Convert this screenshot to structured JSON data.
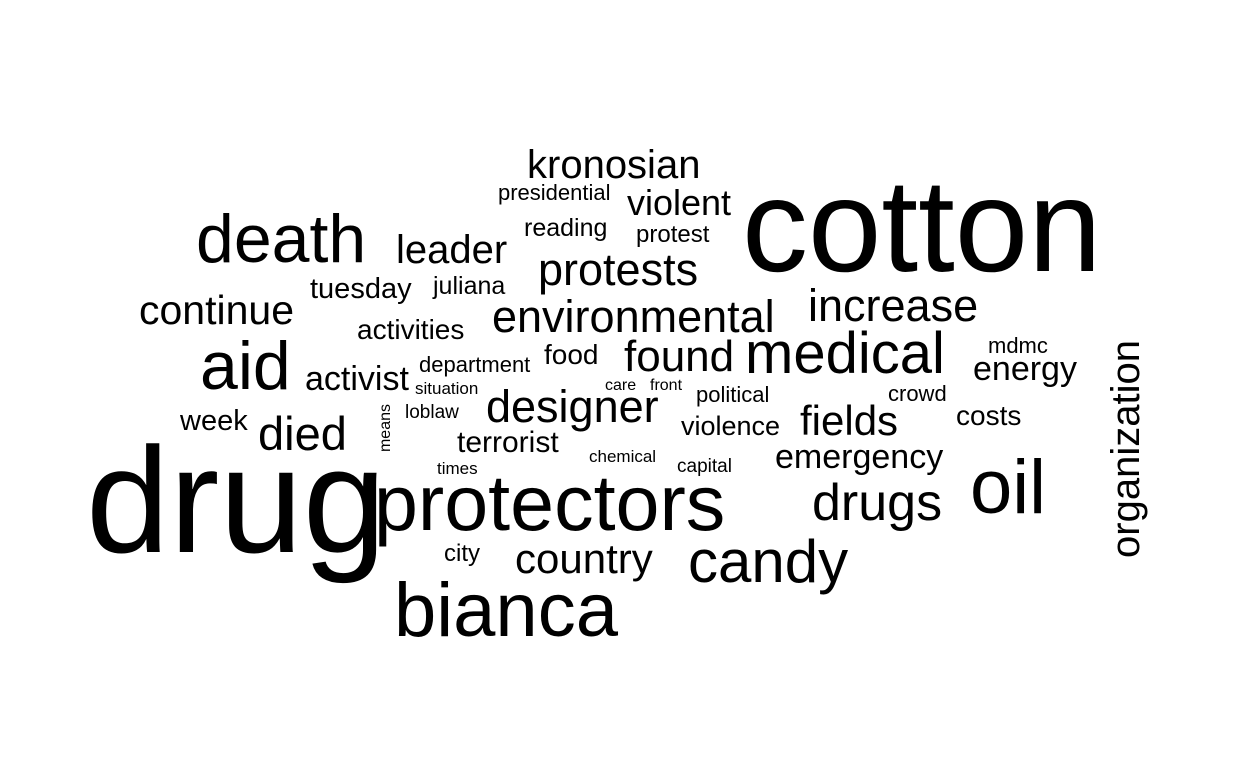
{
  "words": {
    "cotton": "cotton",
    "drug": "drug",
    "protectors": "protectors",
    "bianca": "bianca",
    "death": "death",
    "aid": "aid",
    "medical": "medical",
    "oil": "oil",
    "candy": "candy",
    "drugs": "drugs",
    "environmental": "environmental",
    "protests": "protests",
    "designer": "designer",
    "increase": "increase",
    "kronosian": "kronosian",
    "organization": "organization",
    "country": "country",
    "found": "found",
    "died": "died",
    "continue": "continue",
    "leader": "leader",
    "violent": "violent",
    "fields": "fields",
    "emergency": "emergency",
    "energy": "energy",
    "activist": "activist",
    "tuesday": "tuesday",
    "terrorist": "terrorist",
    "activities": "activities",
    "violence": "violence",
    "costs": "costs",
    "week": "week",
    "food": "food",
    "juliana": "juliana",
    "reading": "reading",
    "protest": "protest",
    "presidential": "presidential",
    "department": "department",
    "political": "political",
    "mdmc": "mdmc",
    "crowd": "crowd",
    "city": "city",
    "loblaw": "loblaw",
    "capital": "capital",
    "chemical": "chemical",
    "situation": "situation",
    "times": "times",
    "care": "care",
    "front": "front",
    "means": "means"
  }
}
